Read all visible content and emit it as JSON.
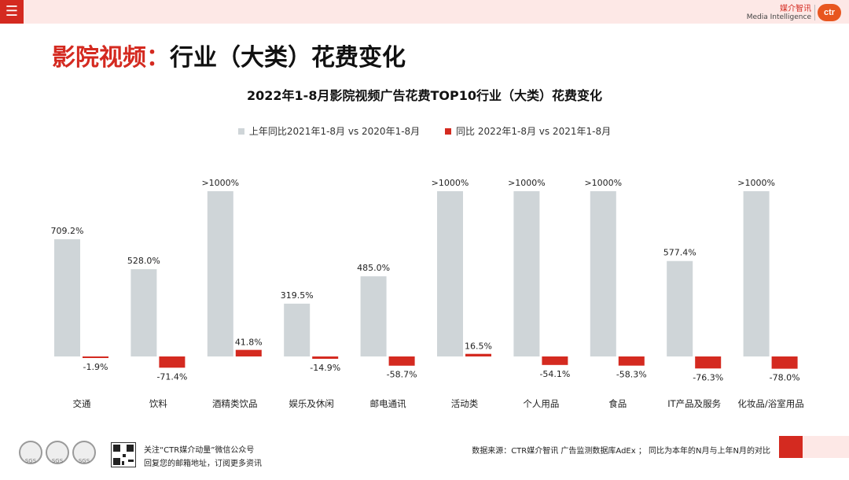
{
  "header": {
    "menu_icon": "☰",
    "brand_cn": "媒介智讯",
    "brand_en": "Media Intelligence",
    "logo_text": "ctr",
    "accent_color": "#d42a20"
  },
  "page_title": {
    "accent": "影院视频：",
    "rest": "行业（大类）花费变化"
  },
  "chart_data": {
    "type": "bar",
    "title": "2022年1-8月影院视频广告花费TOP10行业（大类）花费变化",
    "categories": [
      "交通",
      "饮料",
      "酒精类饮品",
      "娱乐及休闲",
      "邮电通讯",
      "活动类",
      "个人用品",
      "食品",
      "IT产品及服务",
      "化妆品/浴室用品"
    ],
    "series": [
      {
        "name": "上年同比2021年1-8月 vs 2020年1-8月",
        "color": "#cfd5d8",
        "values": [
          709.2,
          528.0,
          1000,
          319.5,
          485.0,
          1000,
          1000,
          1000,
          577.4,
          1000
        ],
        "labels": [
          "709.2%",
          "528.0%",
          ">1000%",
          "319.5%",
          "485.0%",
          ">1000%",
          ">1000%",
          ">1000%",
          "577.4%",
          ">1000%"
        ]
      },
      {
        "name": "同比 2022年1-8月 vs 2021年1-8月",
        "color": "#d42a20",
        "values": [
          -1.9,
          -71.4,
          41.8,
          -14.9,
          -58.7,
          16.5,
          -54.1,
          -58.3,
          -76.3,
          -78.0
        ],
        "labels": [
          "-1.9%",
          "-71.4%",
          "41.8%",
          "-14.9%",
          "-58.7%",
          "16.5%",
          "-54.1%",
          "-58.3%",
          "-76.3%",
          "-78.0%"
        ]
      }
    ],
    "xlabel": "",
    "ylabel": "",
    "ylim": [
      -100,
      1000
    ],
    "grid": false,
    "legend_position": "top-center"
  },
  "footer": {
    "cert_labels": [
      "SGS",
      "SGS",
      "SGS"
    ],
    "wechat_line1": "关注“CTR媒介动量”微信公众号",
    "wechat_line2": "回复您的邮箱地址，订阅更多资讯",
    "source": "数据来源：CTR媒介智讯 广告监测数据库AdEx ；  同比为本年的N月与上年N月的对比"
  }
}
